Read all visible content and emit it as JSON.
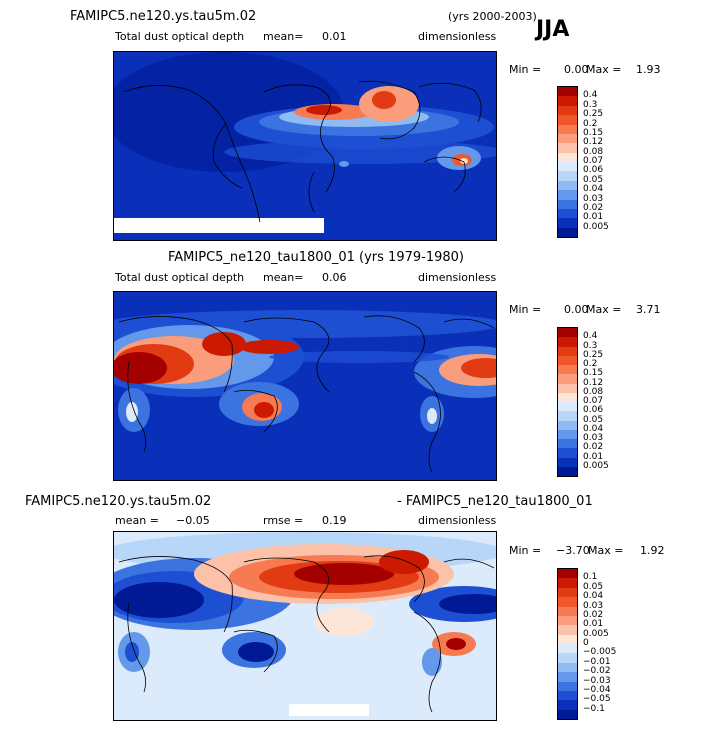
{
  "season": "JJA",
  "panels": [
    {
      "case_title": "FAMIPC5.ne120.ys.tau5m.02",
      "years": "(yrs 2000-2003)",
      "var_label": "Total dust optical depth",
      "mean_label": "mean=",
      "mean_value": "0.01",
      "units": "dimensionless",
      "min_label": "Min =",
      "min_value": "0.00",
      "max_label": "Max =",
      "max_value": "1.93",
      "levels": [
        "0.4",
        "0.3",
        "0.25",
        "0.2",
        "0.15",
        "0.12",
        "0.08",
        "0.07",
        "0.06",
        "0.05",
        "0.04",
        "0.03",
        "0.02",
        "0.01",
        "0.005"
      ],
      "colors": [
        "#a50000",
        "#cc1a00",
        "#e23a12",
        "#f0572b",
        "#f77b52",
        "#fa9d7c",
        "#fcc2a9",
        "#fde6d8",
        "#dcebfb",
        "#b8d6f7",
        "#8fbaf2",
        "#6398ea",
        "#3b73e0",
        "#1d4fd3",
        "#0a2fb8",
        "#001a96"
      ]
    },
    {
      "case_title": "FAMIPC5_ne120_tau1800_01 (yrs 1979-1980)",
      "var_label": "Total dust optical depth",
      "mean_label": "mean=",
      "mean_value": "0.06",
      "units": "dimensionless",
      "min_label": "Min =",
      "min_value": "0.00",
      "max_label": "Max =",
      "max_value": "3.71",
      "levels": [
        "0.4",
        "0.3",
        "0.25",
        "0.2",
        "0.15",
        "0.12",
        "0.08",
        "0.07",
        "0.06",
        "0.05",
        "0.04",
        "0.03",
        "0.02",
        "0.01",
        "0.005"
      ],
      "colors": [
        "#a50000",
        "#cc1a00",
        "#e23a12",
        "#f0572b",
        "#f77b52",
        "#fa9d7c",
        "#fcc2a9",
        "#fde6d8",
        "#dcebfb",
        "#b8d6f7",
        "#8fbaf2",
        "#6398ea",
        "#3b73e0",
        "#1d4fd3",
        "#0a2fb8",
        "#001a96"
      ]
    },
    {
      "case_title": "FAMIPC5.ne120.ys.tau5m.02",
      "diff_title": "- FAMIPC5_ne120_tau1800_01",
      "mean_label": "mean =",
      "mean_value": "−0.05",
      "rmse_label": "rmse =",
      "rmse_value": "0.19",
      "units": "dimensionless",
      "min_label": "Min =",
      "min_value": "−3.70",
      "max_label": "Max =",
      "max_value": "1.92",
      "levels": [
        "0.1",
        "0.05",
        "0.04",
        "0.03",
        "0.02",
        "0.01",
        "0.005",
        "0",
        "−0.005",
        "−0.01",
        "−0.02",
        "−0.03",
        "−0.04",
        "−0.05",
        "−0.1"
      ],
      "colors": [
        "#a50000",
        "#cc1a00",
        "#e23a12",
        "#f0572b",
        "#f77b52",
        "#fa9d7c",
        "#fcc2a9",
        "#fde6d8",
        "#dcebfb",
        "#b8d6f7",
        "#8fbaf2",
        "#6398ea",
        "#3b73e0",
        "#1d4fd3",
        "#0a2fb8",
        "#001a96"
      ]
    }
  ]
}
